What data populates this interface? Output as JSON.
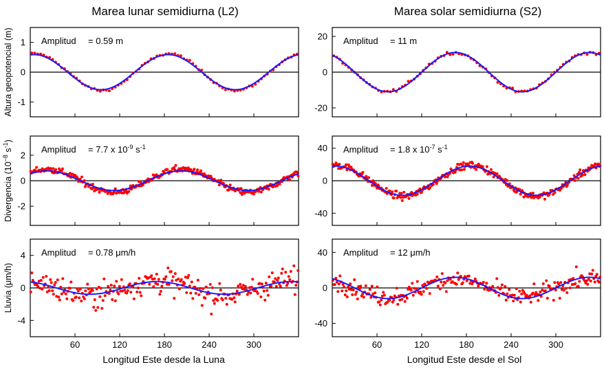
{
  "figure": {
    "left_title": "Marea lunar semidiurna (L2)",
    "right_title": "Marea solar semidiurna (S2)",
    "left_xlabel": "Longitud Este desde la Luna",
    "right_xlabel": "Longitud Este desde el Sol",
    "row_ylabels": [
      "Altura geopotencial (m)",
      {
        "text": "Divergencia (10",
        "sup1": "−8",
        "mid": " s",
        "sup2": "-1",
        "end": ")"
      },
      "Lluvia (μm/h)"
    ],
    "amplitude_prefix": "Amplitud",
    "amplitudes": [
      [
        "= 0.59 m",
        "= 11 m"
      ],
      [
        {
          "text": "= 7.7 x 10",
          "sup1": "-9",
          "mid": " s",
          "sup2": "-1"
        },
        {
          "text": "= 1.8 x 10",
          "sup1": "-7",
          "mid": " s",
          "sup2": "-1"
        }
      ],
      [
        "= 0.78 μm/h",
        "= 12 μm/h"
      ]
    ],
    "colors": {
      "fit_line": "#1a1aff",
      "observations": "#ff0000",
      "axes": "#000000",
      "zero_line": "#000000"
    }
  },
  "chart_data": [
    {
      "type": "scatter",
      "panel": "L2 geopotential height",
      "col": 0,
      "row": 0,
      "x": [
        0,
        360
      ],
      "ylim": [
        -1.5,
        1.5
      ],
      "yticks": [
        -1,
        0,
        1
      ],
      "xticks": [
        60,
        120,
        180,
        240,
        300
      ],
      "amplitude": 0.59,
      "fit_phase_deg": 10,
      "obs_amp": 0.62,
      "obs_phase_deg": 12,
      "noise": 0.03,
      "n_points": 90,
      "wave_period_deg": 180,
      "series": [
        {
          "name": "fit",
          "kind": "line"
        },
        {
          "name": "observations",
          "kind": "scatter"
        }
      ]
    },
    {
      "type": "scatter",
      "panel": "S2 geopotential height",
      "col": 1,
      "row": 0,
      "x": [
        0,
        360
      ],
      "ylim": [
        -25,
        25
      ],
      "yticks": [
        -20,
        0,
        20
      ],
      "xticks": [
        60,
        120,
        180,
        240,
        300
      ],
      "amplitude": 11,
      "fit_phase_deg": -30,
      "obs_amp": 11,
      "obs_phase_deg": -32,
      "noise": 0.6,
      "n_points": 90,
      "wave_period_deg": 180,
      "series": [
        {
          "name": "fit",
          "kind": "line"
        },
        {
          "name": "observations",
          "kind": "scatter"
        }
      ]
    },
    {
      "type": "scatter",
      "panel": "L2 divergence",
      "col": 0,
      "row": 1,
      "x": [
        0,
        360
      ],
      "ylim": [
        -3.5,
        3.5
      ],
      "yticks": [
        -2,
        0,
        2
      ],
      "xticks": [
        60,
        120,
        180,
        240,
        300
      ],
      "amplitude": 0.77,
      "fit_phase_deg": 45,
      "obs_amp": 0.9,
      "obs_phase_deg": 45,
      "noise": 0.18,
      "n_points": 320,
      "wave_period_deg": 180,
      "series": [
        {
          "name": "fit",
          "kind": "line"
        },
        {
          "name": "observations",
          "kind": "scatter"
        }
      ]
    },
    {
      "type": "scatter",
      "panel": "S2 divergence",
      "col": 1,
      "row": 1,
      "x": [
        0,
        360
      ],
      "ylim": [
        -55,
        55
      ],
      "yticks": [
        -40,
        0,
        40
      ],
      "xticks": [
        60,
        120,
        180,
        240,
        300
      ],
      "amplitude": 18,
      "fit_phase_deg": 8,
      "obs_amp": 19,
      "obs_phase_deg": 10,
      "noise": 3,
      "n_points": 320,
      "wave_period_deg": 180,
      "series": [
        {
          "name": "fit",
          "kind": "line"
        },
        {
          "name": "observations",
          "kind": "scatter"
        }
      ]
    },
    {
      "type": "scatter",
      "panel": "L2 rainfall",
      "col": 0,
      "row": 2,
      "x": [
        0,
        360
      ],
      "ylim": [
        -6,
        6
      ],
      "yticks": [
        -4,
        0,
        4
      ],
      "xticks": [
        60,
        120,
        180,
        240,
        300
      ],
      "amplitude": 0.78,
      "fit_phase_deg": -20,
      "obs_amp": 0.9,
      "obs_phase_deg": -20,
      "noise": 1.1,
      "n_points": 260,
      "wave_period_deg": 180,
      "series": [
        {
          "name": "fit",
          "kind": "line"
        },
        {
          "name": "observations",
          "kind": "scatter"
        }
      ]
    },
    {
      "type": "scatter",
      "panel": "S2 rainfall",
      "col": 1,
      "row": 2,
      "x": [
        0,
        360
      ],
      "ylim": [
        -55,
        55
      ],
      "yticks": [
        -40,
        0,
        40
      ],
      "xticks": [
        60,
        120,
        180,
        240,
        300
      ],
      "amplitude": 12,
      "fit_phase_deg": -30,
      "obs_amp": 10,
      "obs_phase_deg": -30,
      "noise": 7,
      "n_points": 260,
      "wave_period_deg": 180,
      "series": [
        {
          "name": "fit",
          "kind": "line"
        },
        {
          "name": "observations",
          "kind": "scatter"
        }
      ]
    }
  ]
}
